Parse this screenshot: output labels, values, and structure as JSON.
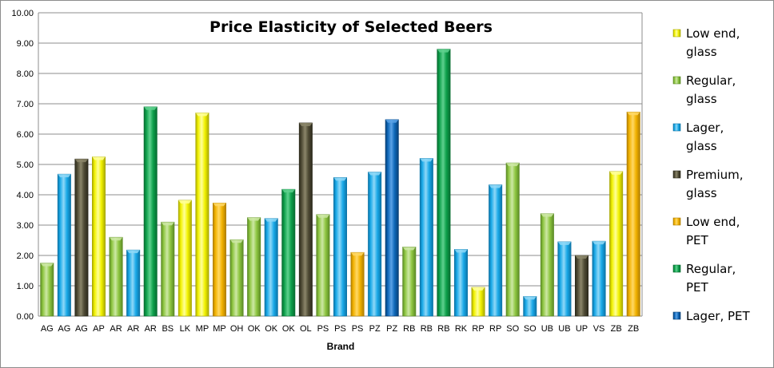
{
  "chart_data": {
    "type": "bar",
    "title": "Price Elasticity of Selected Beers",
    "xlabel": "Brand",
    "ylabel": "",
    "ylim": [
      0,
      10
    ],
    "ytick_step": 1,
    "ytick_labels": [
      "0.00",
      "1.00",
      "2.00",
      "3.00",
      "4.00",
      "5.00",
      "6.00",
      "7.00",
      "8.00",
      "9.00",
      "10.00"
    ],
    "grid": true,
    "legend_position": "right",
    "series_styles": [
      {
        "key": "low_glass",
        "label_lines": [
          "Low end,",
          "glass"
        ],
        "color": "#f2f200",
        "light": "#ffff9a",
        "dark": "#a8a800"
      },
      {
        "key": "reg_glass",
        "label_lines": [
          "Regular,",
          "glass"
        ],
        "color": "#8ec641",
        "light": "#cde8a5",
        "dark": "#5b8a25"
      },
      {
        "key": "lager_glass",
        "label_lines": [
          "Lager,",
          "glass"
        ],
        "color": "#19a9e8",
        "light": "#8fd8f7",
        "dark": "#0b73a6"
      },
      {
        "key": "prem_glass",
        "label_lines": [
          "Premium,",
          "glass"
        ],
        "color": "#4f4b35",
        "light": "#8b866a",
        "dark": "#2c2a1c"
      },
      {
        "key": "low_pet",
        "label_lines": [
          "Low end,",
          "PET"
        ],
        "color": "#f2b200",
        "light": "#ffd866",
        "dark": "#b07e00"
      },
      {
        "key": "reg_pet",
        "label_lines": [
          "Regular,",
          "PET"
        ],
        "color": "#0ea04b",
        "light": "#5fd18e",
        "dark": "#066b30"
      },
      {
        "key": "lager_pet",
        "label_lines": [
          "Lager, PET"
        ],
        "color": "#0e67b8",
        "light": "#5aa2e6",
        "dark": "#073f75"
      }
    ],
    "bars": [
      {
        "category": "AG",
        "series": "reg_glass",
        "value": 1.75
      },
      {
        "category": "AG",
        "series": "lager_glass",
        "value": 4.68
      },
      {
        "category": "AG",
        "series": "prem_glass",
        "value": 5.18
      },
      {
        "category": "AP",
        "series": "low_glass",
        "value": 5.25
      },
      {
        "category": "AR",
        "series": "reg_glass",
        "value": 2.6
      },
      {
        "category": "AR",
        "series": "lager_glass",
        "value": 2.18
      },
      {
        "category": "AR",
        "series": "reg_pet",
        "value": 6.9
      },
      {
        "category": "BS",
        "series": "reg_glass",
        "value": 3.1
      },
      {
        "category": "LK",
        "series": "low_glass",
        "value": 3.82
      },
      {
        "category": "MP",
        "series": "low_glass",
        "value": 6.7
      },
      {
        "category": "MP",
        "series": "low_pet",
        "value": 3.73
      },
      {
        "category": "OH",
        "series": "reg_glass",
        "value": 2.52
      },
      {
        "category": "OK",
        "series": "reg_glass",
        "value": 3.25
      },
      {
        "category": "OK",
        "series": "lager_glass",
        "value": 3.22
      },
      {
        "category": "OK",
        "series": "reg_pet",
        "value": 4.18
      },
      {
        "category": "OL",
        "series": "prem_glass",
        "value": 6.37
      },
      {
        "category": "PS",
        "series": "reg_glass",
        "value": 3.35
      },
      {
        "category": "PS",
        "series": "lager_glass",
        "value": 4.57
      },
      {
        "category": "PS",
        "series": "low_pet",
        "value": 2.1
      },
      {
        "category": "PZ",
        "series": "lager_glass",
        "value": 4.75
      },
      {
        "category": "PZ",
        "series": "lager_pet",
        "value": 6.48
      },
      {
        "category": "RB",
        "series": "reg_glass",
        "value": 2.28
      },
      {
        "category": "RB",
        "series": "lager_glass",
        "value": 5.2
      },
      {
        "category": "RB",
        "series": "reg_pet",
        "value": 8.8
      },
      {
        "category": "RK",
        "series": "lager_glass",
        "value": 2.2
      },
      {
        "category": "RP",
        "series": "low_glass",
        "value": 0.95
      },
      {
        "category": "RP",
        "series": "lager_glass",
        "value": 4.33
      },
      {
        "category": "SO",
        "series": "reg_glass",
        "value": 5.05
      },
      {
        "category": "SO",
        "series": "lager_glass",
        "value": 0.65
      },
      {
        "category": "UB",
        "series": "reg_glass",
        "value": 3.38
      },
      {
        "category": "UB",
        "series": "lager_glass",
        "value": 2.45
      },
      {
        "category": "UP",
        "series": "prem_glass",
        "value": 2.0
      },
      {
        "category": "VS",
        "series": "lager_glass",
        "value": 2.47
      },
      {
        "category": "ZB",
        "series": "low_glass",
        "value": 4.77
      },
      {
        "category": "ZB",
        "series": "low_pet",
        "value": 6.73
      }
    ]
  }
}
